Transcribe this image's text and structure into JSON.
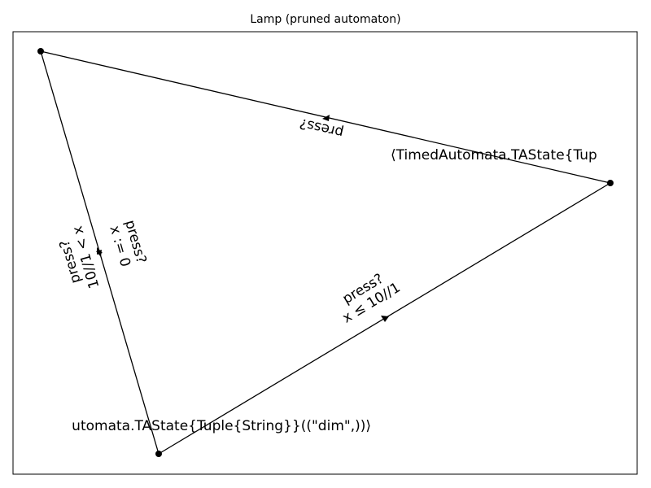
{
  "title": "Lamp (pruned automaton)",
  "nodes": [
    {
      "id": "top-left",
      "label": ""
    },
    {
      "id": "right",
      "label": "⟨TimedAutomata.TAState{Tup"
    },
    {
      "id": "bottom",
      "label": "utomata.TAState{Tuple{String}}((\"dim\",))⟩"
    }
  ],
  "edges": [
    {
      "id": "right-to-top",
      "label_lines": [
        "press?"
      ]
    },
    {
      "id": "bottom-to-right",
      "label_lines": [
        "press?",
        "x ≤ 10//1"
      ]
    },
    {
      "id": "top-to-bottom",
      "label_lines": [
        "press?",
        "x := 0"
      ]
    },
    {
      "id": "bottom-to-top",
      "label_lines": [
        "press?",
        "10//1 < x"
      ]
    }
  ],
  "colors": {
    "edge": "#000000",
    "node": "#000000",
    "frame": "#000000"
  }
}
